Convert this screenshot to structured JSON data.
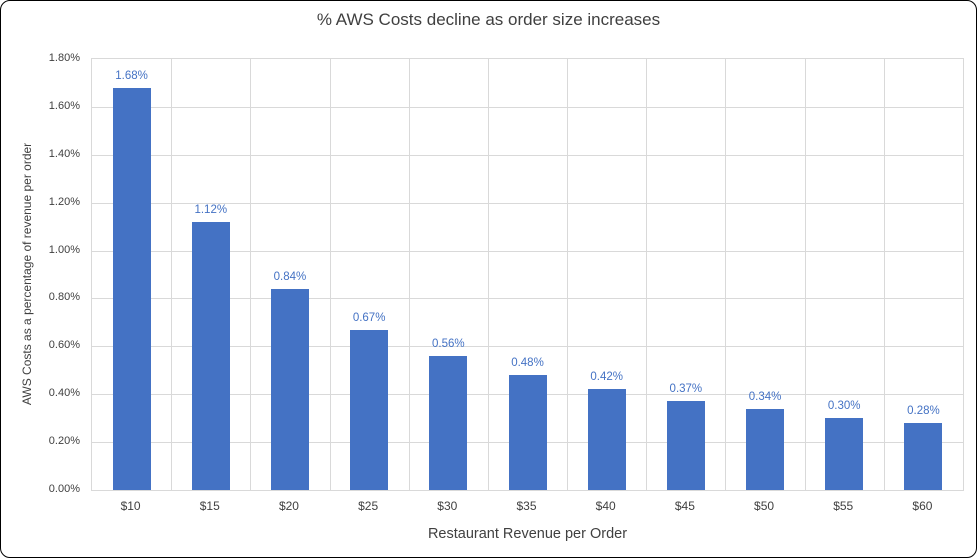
{
  "chart_data": {
    "type": "bar",
    "title": "% AWS Costs decline as order size increases",
    "xlabel": "Restaurant Revenue per Order",
    "ylabel": "AWS Costs as a percentage of revenue per order",
    "categories": [
      "$10",
      "$15",
      "$20",
      "$25",
      "$30",
      "$35",
      "$40",
      "$45",
      "$50",
      "$55",
      "$60"
    ],
    "values": [
      1.68,
      1.12,
      0.84,
      0.67,
      0.56,
      0.48,
      0.42,
      0.37,
      0.34,
      0.3,
      0.28
    ],
    "data_labels": [
      "1.68%",
      "1.12%",
      "0.84%",
      "0.67%",
      "0.56%",
      "0.48%",
      "0.42%",
      "0.37%",
      "0.34%",
      "0.30%",
      "0.28%"
    ],
    "ytick_labels": [
      "0.00%",
      "0.20%",
      "0.40%",
      "0.60%",
      "0.80%",
      "1.00%",
      "1.20%",
      "1.40%",
      "1.60%",
      "1.80%"
    ],
    "ylim": [
      0,
      1.8
    ],
    "ytick_step": 0.2,
    "grid": true,
    "legend": "none",
    "colors": {
      "bar": "#4472C4",
      "data_label": "#4472C4",
      "title_text": "#404040",
      "axis_text": "#404040",
      "gridline": "#D9D9D9"
    }
  }
}
